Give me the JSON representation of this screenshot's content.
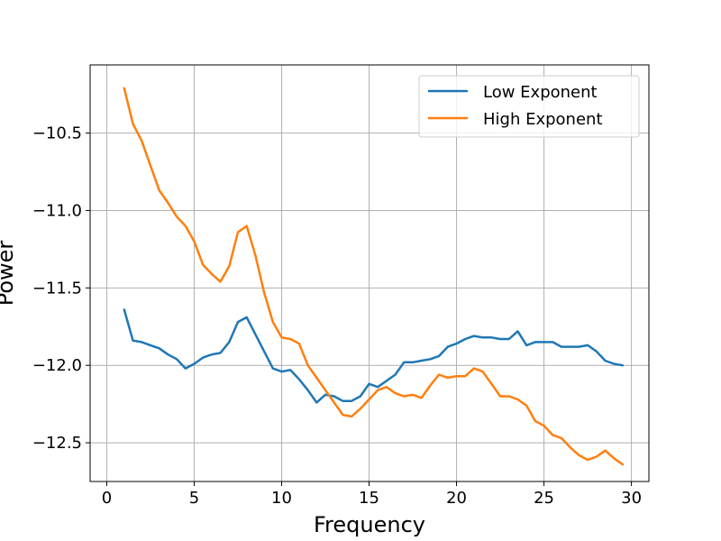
{
  "chart_data": {
    "type": "line",
    "xlabel": "Frequency",
    "ylabel": "Power",
    "xlim": [
      -0.95,
      31.0
    ],
    "ylim": [
      -12.75,
      -10.06
    ],
    "grid": true,
    "legend_placement": "top-right",
    "x_ticks": [
      0,
      5,
      10,
      15,
      20,
      25,
      30
    ],
    "x_tick_labels": [
      "0",
      "5",
      "10",
      "15",
      "20",
      "25",
      "30"
    ],
    "y_ticks": [
      -10.5,
      -11.0,
      -11.5,
      -12.0,
      -12.5
    ],
    "y_tick_labels": [
      "−10.5",
      "−11.0",
      "−11.5",
      "−12.0",
      "−12.5"
    ],
    "x": [
      1.0,
      1.5,
      2.0,
      2.5,
      3.0,
      3.5,
      4.0,
      4.5,
      5.0,
      5.5,
      6.0,
      6.5,
      7.0,
      7.5,
      8.0,
      8.5,
      9.0,
      9.5,
      10.0,
      10.5,
      11.0,
      11.5,
      12.0,
      12.5,
      13.0,
      13.5,
      14.0,
      14.5,
      15.0,
      15.5,
      16.0,
      16.5,
      17.0,
      17.5,
      18.0,
      18.5,
      19.0,
      19.5,
      20.0,
      20.5,
      21.0,
      21.5,
      22.0,
      22.5,
      23.0,
      23.5,
      24.0,
      24.5,
      25.0,
      25.5,
      26.0,
      26.5,
      27.0,
      27.5,
      28.0,
      28.5,
      29.0,
      29.5
    ],
    "series": [
      {
        "name": "Low Exponent",
        "color": "#1f77b4",
        "values": [
          -11.64,
          -11.84,
          -11.85,
          -11.87,
          -11.89,
          -11.93,
          -11.96,
          -12.02,
          -11.99,
          -11.95,
          -11.93,
          -11.92,
          -11.85,
          -11.72,
          -11.69,
          -11.8,
          -11.91,
          -12.02,
          -12.04,
          -12.03,
          -12.09,
          -12.16,
          -12.24,
          -12.19,
          -12.2,
          -12.23,
          -12.23,
          -12.2,
          -12.12,
          -12.14,
          -12.1,
          -12.06,
          -11.98,
          -11.98,
          -11.97,
          -11.96,
          -11.94,
          -11.88,
          -11.86,
          -11.83,
          -11.81,
          -11.82,
          -11.82,
          -11.83,
          -11.83,
          -11.78,
          -11.87,
          -11.85,
          -11.85,
          -11.85,
          -11.88,
          -11.88,
          -11.88,
          -11.87,
          -11.91,
          -11.97,
          -11.99,
          -12.0
        ]
      },
      {
        "name": "High Exponent",
        "color": "#ff7f0e",
        "values": [
          -10.21,
          -10.44,
          -10.55,
          -10.71,
          -10.87,
          -10.95,
          -11.04,
          -11.1,
          -11.2,
          -11.35,
          -11.41,
          -11.46,
          -11.36,
          -11.14,
          -11.1,
          -11.29,
          -11.53,
          -11.72,
          -11.82,
          -11.83,
          -11.86,
          -12.0,
          -12.08,
          -12.16,
          -12.24,
          -12.32,
          -12.33,
          -12.28,
          -12.22,
          -12.16,
          -12.14,
          -12.18,
          -12.2,
          -12.19,
          -12.21,
          -12.13,
          -12.06,
          -12.08,
          -12.07,
          -12.07,
          -12.02,
          -12.04,
          -12.12,
          -12.2,
          -12.2,
          -12.22,
          -12.26,
          -12.36,
          -12.39,
          -12.45,
          -12.47,
          -12.53,
          -12.58,
          -12.61,
          -12.59,
          -12.55,
          -12.6,
          -12.64
        ]
      }
    ]
  }
}
